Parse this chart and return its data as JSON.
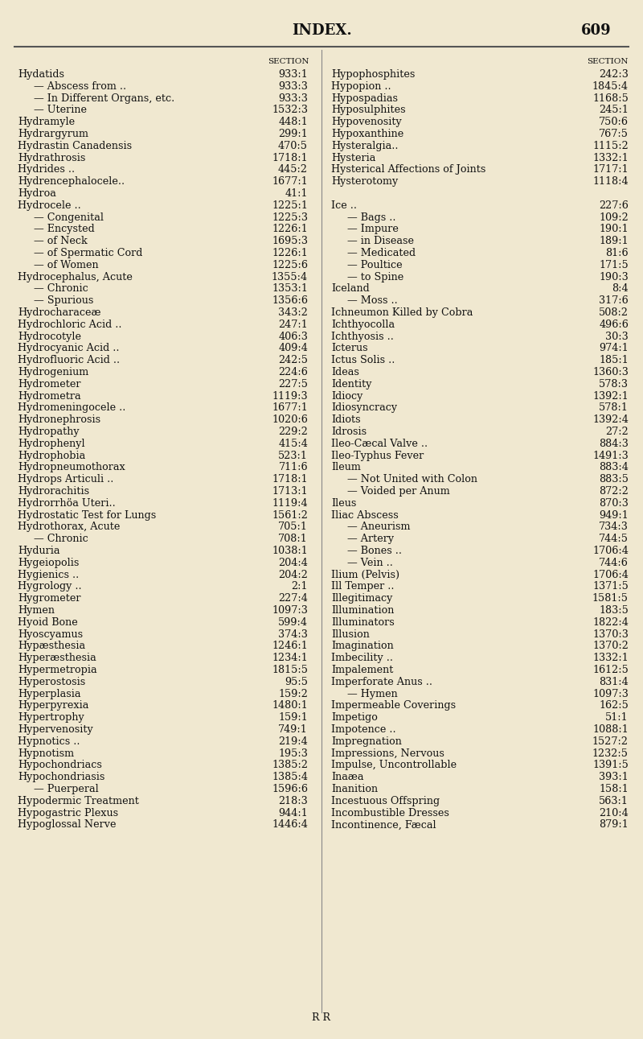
{
  "bg_color": "#f0e8d0",
  "title": "INDEX.",
  "page_num": "609",
  "text_color": "#111111",
  "col_header": "SECTION",
  "footer": "R R",
  "left_col": [
    [
      "Hydatids",
      "..",
      "..",
      "..",
      "933:1",
      false
    ],
    [
      "— Abscess from ..",
      "..",
      "..",
      "",
      "933:3",
      true
    ],
    [
      "— In Different Organs, etc.",
      "..",
      "",
      "",
      "933:3",
      true
    ],
    [
      "— Uterine",
      "..",
      "..",
      "..",
      "1532:3",
      true
    ],
    [
      "Hydramyle",
      "..",
      "..",
      "..",
      "448:1",
      false
    ],
    [
      "Hydrargyrum",
      "..",
      "..",
      "..",
      "299:1",
      false
    ],
    [
      "Hydrastin Canadensis",
      "..",
      "..",
      "",
      "470:5",
      false
    ],
    [
      "Hydrathrosis",
      "..",
      "..",
      "..",
      "1718:1",
      false
    ],
    [
      "Hydrides ..",
      "..",
      "..",
      "..",
      "445:2",
      false
    ],
    [
      "Hydrencephalocele..",
      "..",
      "..",
      "",
      "1677:1",
      false
    ],
    [
      "Hydroa",
      "..",
      "..",
      "..",
      "41:1",
      false
    ],
    [
      "Hydrocele ..",
      "..",
      "..",
      "..",
      "1225:1",
      false
    ],
    [
      "— Congenital",
      "..",
      "..",
      "..",
      "1225:3",
      true
    ],
    [
      "— Encysted",
      "..",
      "..",
      "..",
      "1226:1",
      true
    ],
    [
      "— of Neck",
      "..",
      "..",
      "..",
      "1695:3",
      true
    ],
    [
      "— of Spermatic Cord",
      "..",
      "..",
      "",
      "1226:1",
      true
    ],
    [
      "— of Women",
      "..",
      "..",
      "..",
      "1225:6",
      true
    ],
    [
      "Hydrocephalus, Acute",
      "..",
      "..",
      "",
      "1355:4",
      false
    ],
    [
      "— Chronic",
      "..",
      "..",
      "..",
      "1353:1",
      true
    ],
    [
      "— Spurious",
      "..",
      "..",
      "..",
      "1356:6",
      true
    ],
    [
      "Hydrocharaceæ",
      "..",
      "..",
      "..",
      "343:2",
      false
    ],
    [
      "Hydrochloric Acid ..",
      "..",
      "..",
      "",
      "247:1",
      false
    ],
    [
      "Hydrocotyle",
      "..",
      "..",
      "..",
      "406:3",
      false
    ],
    [
      "Hydrocyanic Acid ..",
      "..",
      "..",
      "",
      "409:4",
      false
    ],
    [
      "Hydrofluoric Acid ..",
      "..",
      "..",
      "",
      "242:5",
      false
    ],
    [
      "Hydrogenium",
      "..",
      "..",
      "..",
      "224:6",
      false
    ],
    [
      "Hydrometer",
      "..",
      "..",
      "..",
      "227:5",
      false
    ],
    [
      "Hydrometra",
      "..",
      "..",
      "..",
      "1119:3",
      false
    ],
    [
      "Hydromeningocele ..",
      "..",
      "..",
      "",
      "1677:1",
      false
    ],
    [
      "Hydronephrosis",
      "..",
      "..",
      "..",
      "1020:6",
      false
    ],
    [
      "Hydropathy",
      "..",
      "..",
      "..",
      "229:2",
      false
    ],
    [
      "Hydrophenyl",
      "..",
      "..",
      "..",
      "415:4",
      false
    ],
    [
      "Hydrophobia",
      "..",
      "..",
      "..",
      "523:1",
      false
    ],
    [
      "Hydropneumothorax",
      "..",
      "..",
      "",
      "711:6",
      false
    ],
    [
      "Hydrops Articuli ..",
      "..",
      "..",
      "",
      "1718:1",
      false
    ],
    [
      "Hydrorachitis",
      "..",
      "..",
      "..",
      "1713:1",
      false
    ],
    [
      "Hydrorrhöa Uteri..",
      "..",
      "..",
      "",
      "1119:4",
      false
    ],
    [
      "Hydrostatic Test for Lungs",
      "..",
      "",
      "",
      "1561:2",
      false
    ],
    [
      "Hydrothorax, Acute",
      "..",
      "..",
      "",
      "705:1",
      false
    ],
    [
      "— Chronic",
      "..",
      "..",
      "..",
      "708:1",
      true
    ],
    [
      "Hyduria",
      "..",
      "..",
      "..",
      "1038:1",
      false
    ],
    [
      "Hygeiopolis",
      "..",
      "..",
      "..",
      "204:4",
      false
    ],
    [
      "Hygienics ..",
      "..",
      "..",
      "..",
      "204:2",
      false
    ],
    [
      "Hygrology ..",
      "..",
      "..",
      "..",
      "2:1",
      false
    ],
    [
      "Hygrometer",
      "..",
      "..",
      "..",
      "227:4",
      false
    ],
    [
      "Hymen",
      "..",
      "..",
      "..",
      "1097:3",
      false
    ],
    [
      "Hyoid Bone",
      "..",
      "..",
      "..",
      "599:4",
      false
    ],
    [
      "Hyoscyamus",
      "..",
      "..",
      "..",
      "374:3",
      false
    ],
    [
      "Hypæsthesia",
      "..",
      "..",
      "..",
      "1246:1",
      false
    ],
    [
      "Hyperæsthesia",
      "..",
      "..",
      "..",
      "1234:1",
      false
    ],
    [
      "Hypermetropia",
      "..",
      "..",
      "..",
      "1815:5",
      false
    ],
    [
      "Hyperostosis",
      "..",
      "..",
      "..",
      "95:5",
      false
    ],
    [
      "Hyperplasia",
      "..",
      "..",
      "..",
      "159:2",
      false
    ],
    [
      "Hyperpyrexia",
      "..",
      "..",
      "..",
      "1480:1",
      false
    ],
    [
      "Hypertrophy",
      "..",
      "..",
      "..",
      "159:1",
      false
    ],
    [
      "Hypervenosity",
      "..",
      "..",
      "..",
      "749:1",
      false
    ],
    [
      "Hypnotics ..",
      "..",
      "..",
      "..",
      "219:4",
      false
    ],
    [
      "Hypnotism",
      "..",
      "..",
      "..",
      "195:3",
      false
    ],
    [
      "Hypochondriacs",
      "..",
      "..",
      "..",
      "1385:2",
      false
    ],
    [
      "Hypochondriasis",
      "..",
      "..",
      "..",
      "1385:4",
      false
    ],
    [
      "— Puerperal",
      "..",
      "..",
      "..",
      "1596:6",
      true
    ],
    [
      "Hypodermic Treatment",
      "..",
      "..",
      "",
      "218:3",
      false
    ],
    [
      "Hypogastric Plexus",
      "..",
      "..",
      "",
      "944:1",
      false
    ],
    [
      "Hypoglossal Nerve",
      "..",
      "..",
      "..",
      "1446:4",
      false
    ]
  ],
  "right_col": [
    [
      "Hypophosphites",
      "..",
      "..",
      "..",
      "242:3",
      false
    ],
    [
      "Hypopion ..",
      "..",
      "..",
      "..",
      "1845:4",
      false
    ],
    [
      "Hypospadias",
      "..",
      "..",
      "..",
      "1168:5",
      false
    ],
    [
      "Hyposulphites",
      "..",
      "..",
      "..",
      "245:1",
      false
    ],
    [
      "Hypovenosity",
      "..",
      "..",
      "..",
      "750:6",
      false
    ],
    [
      "Hypoxanthine",
      "..",
      "..",
      "..",
      "767:5",
      false
    ],
    [
      "Hysteralgia..",
      "..",
      "..",
      "..",
      "1115:2",
      false
    ],
    [
      "Hysteria",
      "..",
      "..",
      "..",
      "1332:1",
      false
    ],
    [
      "Hysterical Affections of Joints",
      "..",
      "",
      "",
      "1717:1",
      false
    ],
    [
      "Hysterotomy",
      "..",
      "..",
      "..",
      "1118:4",
      false
    ],
    [
      "",
      "",
      "",
      "",
      "",
      false
    ],
    [
      "Ice ..",
      "..",
      "..",
      "..",
      "227:6",
      false
    ],
    [
      "— Bags ..",
      "..",
      "..",
      "..",
      "109:2",
      true
    ],
    [
      "— Impure",
      "..",
      "..",
      "..",
      "190:1",
      true
    ],
    [
      "— in Disease",
      "..",
      "..",
      "..",
      "189:1",
      true
    ],
    [
      "— Medicated",
      "..",
      "..",
      "..",
      "81:6",
      true
    ],
    [
      "— Poultice",
      "..",
      "..",
      "..",
      "171:5",
      true
    ],
    [
      "— to Spine",
      "..",
      "..",
      "..",
      "190:3",
      true
    ],
    [
      "Iceland",
      "..",
      "..",
      "..",
      "8:4",
      false
    ],
    [
      "— Moss ..",
      "..",
      "..",
      "..",
      "317:6",
      true
    ],
    [
      "Ichneumon Killed by Cobra",
      "..",
      "",
      "",
      "508:2",
      false
    ],
    [
      "Ichthyocolla",
      "..",
      "..",
      "..",
      "496:6",
      false
    ],
    [
      "Ichthyosis ..",
      "..",
      "..",
      "..",
      "30:3",
      false
    ],
    [
      "Icterus",
      "..",
      "..",
      "..",
      "974:1",
      false
    ],
    [
      "Ictus Solis ..",
      "..",
      "..",
      "..",
      "185:1",
      false
    ],
    [
      "Ideas",
      "..",
      "..",
      "..",
      "1360:3",
      false
    ],
    [
      "Identity",
      "..",
      "..",
      "..",
      "578:3",
      false
    ],
    [
      "Idiocy",
      "..",
      "..",
      "..",
      "1392:1",
      false
    ],
    [
      "Idiosyncracy",
      "..",
      "..",
      "..",
      "578:1",
      false
    ],
    [
      "Idiots",
      "..",
      "..",
      "..",
      "1392:4",
      false
    ],
    [
      "Idrosis",
      "..",
      "..",
      "..",
      "27:2",
      false
    ],
    [
      "Ileo-Cæcal Valve ..",
      "..",
      "..",
      "",
      "884:3",
      false
    ],
    [
      "Ileo-Typhus Fever",
      "..",
      "..",
      "",
      "1491:3",
      false
    ],
    [
      "Ileum",
      "..",
      "..",
      "..",
      "883:4",
      false
    ],
    [
      "— Not United with Colon",
      "..",
      "",
      "",
      "883:5",
      true
    ],
    [
      "— Voided per Anum",
      "..",
      "..",
      "",
      "872:2",
      true
    ],
    [
      "Ileus",
      "..",
      "..",
      "..",
      "870:3",
      false
    ],
    [
      "Iliac Abscess",
      "..",
      "..",
      "..",
      "949:1",
      false
    ],
    [
      "— Aneurism",
      "..",
      "..",
      "..",
      "734:3",
      true
    ],
    [
      "— Artery",
      "..",
      "..",
      "..",
      "744:5",
      true
    ],
    [
      "— Bones ..",
      "..",
      "..",
      "..",
      "1706:4",
      true
    ],
    [
      "— Vein ..",
      "..",
      "..",
      "..",
      "744:6",
      true
    ],
    [
      "Ilium (Pelvis)",
      "..",
      "..",
      "..",
      "1706:4",
      false
    ],
    [
      "Ill Temper ..",
      "..",
      "..",
      "..",
      "1371:5",
      false
    ],
    [
      "Illegitimacy",
      "..",
      "..",
      "..",
      "1581:5",
      false
    ],
    [
      "Illumination",
      "..",
      "..",
      "..",
      "183:5",
      false
    ],
    [
      "Illuminators",
      "..",
      "..",
      "..",
      "1822:4",
      false
    ],
    [
      "Illusion",
      "..",
      "..",
      "..",
      "1370:3",
      false
    ],
    [
      "Imagination",
      "..",
      "..",
      "..",
      "1370:2",
      false
    ],
    [
      "Imbecility ..",
      "..",
      "..",
      "..",
      "1332:1",
      false
    ],
    [
      "Impalement",
      "..",
      "..",
      "..",
      "1612:5",
      false
    ],
    [
      "Imperforate Anus ..",
      "..",
      "..",
      "",
      "831:4",
      false
    ],
    [
      "— Hymen",
      "..",
      "..",
      "..",
      "1097:3",
      true
    ],
    [
      "Impermeable Coverings",
      "..",
      "..",
      "",
      "162:5",
      false
    ],
    [
      "Impetigo",
      "..",
      "..",
      "..",
      "51:1",
      false
    ],
    [
      "Impotence ..",
      "..",
      "..",
      "..",
      "1088:1",
      false
    ],
    [
      "Impregnation",
      "..",
      "..",
      "..",
      "1527:2",
      false
    ],
    [
      "Impressions, Nervous",
      "..",
      "..",
      "",
      "1232:5",
      false
    ],
    [
      "Impulse, Uncontrollable",
      "..",
      "",
      "",
      "1391:5",
      false
    ],
    [
      "Inaæa",
      "..",
      "..",
      "..",
      "393:1",
      false
    ],
    [
      "Inanition",
      "..",
      "..",
      "..",
      "158:1",
      false
    ],
    [
      "Incestuous Offspring",
      "..",
      "..",
      "",
      "563:1",
      false
    ],
    [
      "Incombustible Dresses",
      "..",
      "..",
      "",
      "210:4",
      false
    ],
    [
      "Incontinence, Fæcal",
      "..",
      "..",
      "",
      "879:1",
      false
    ]
  ]
}
